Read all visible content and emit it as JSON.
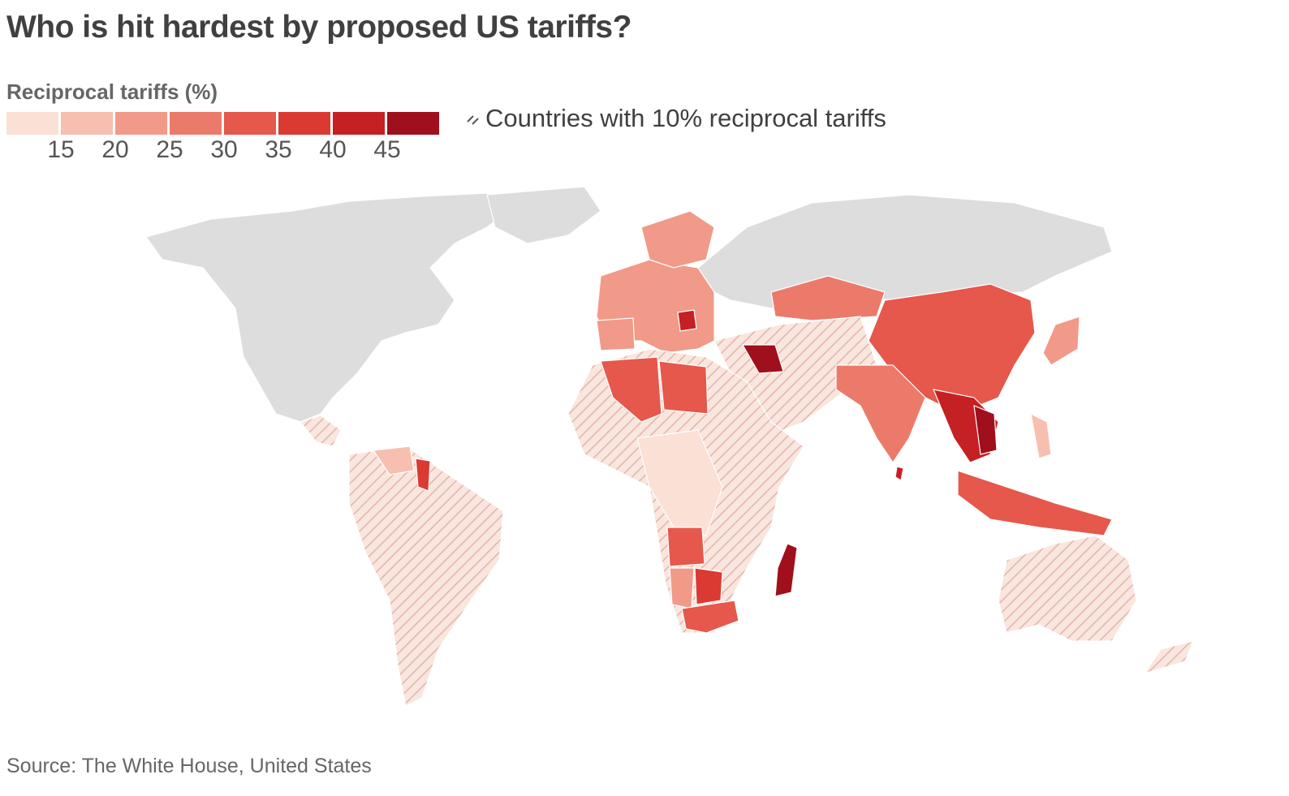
{
  "title": "Who is hit hardest by proposed US tariffs?",
  "legend": {
    "title": "Reciprocal tariffs (%)",
    "scale_colors": [
      "#fbe0d6",
      "#f7bfb0",
      "#f19a89",
      "#ec7a6a",
      "#e5584b",
      "#db3a32",
      "#c52024",
      "#a00f1c"
    ],
    "ticks": [
      "15",
      "20",
      "25",
      "30",
      "35",
      "40",
      "45"
    ],
    "hatch_label": "Countries with 10% reciprocal tariffs",
    "hatch_icon": "hatch-pattern-icon"
  },
  "map": {
    "no_data_color": "#dddddd",
    "ten_percent_fill": "#f8e6df",
    "ten_percent_hatch": "#e6b4a8"
  },
  "source": "Source: The White House, United States"
}
